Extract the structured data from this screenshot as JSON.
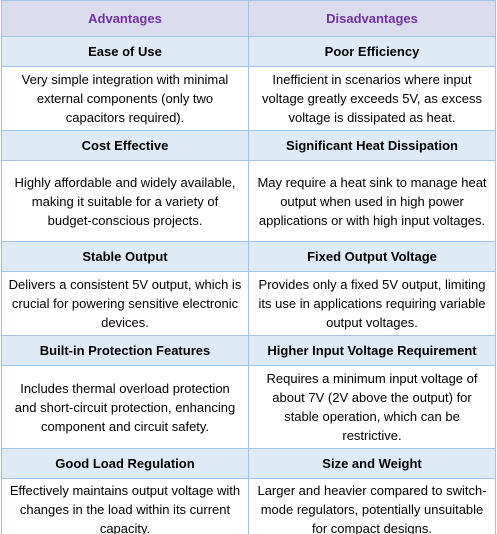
{
  "table": {
    "header": [
      "Advantages",
      "Disadvantages"
    ],
    "rows": [
      [
        {
          "title": "Ease of Use",
          "text": "Very simple integration with minimal external components (only two capacitors required)."
        },
        {
          "title": "Poor Efficiency",
          "text": "Inefficient in scenarios where input voltage greatly exceeds 5V, as excess voltage is dissipated as heat."
        }
      ],
      [
        {
          "title": "Cost Effective",
          "text": "Highly affordable and widely available, making it suitable for a variety of budget-conscious projects."
        },
        {
          "title": "Significant Heat Dissipation",
          "text": "May require a heat sink to manage heat output when used in high power applications or with high input voltages."
        }
      ],
      [
        {
          "title": "Stable Output",
          "text": "Delivers a consistent 5V output, which is crucial for powering sensitive electronic devices."
        },
        {
          "title": "Fixed Output Voltage",
          "text": "Provides only a fixed 5V output, limiting its use in applications requiring variable output voltages."
        }
      ],
      [
        {
          "title": "Built-in Protection Features",
          "text": "Includes thermal overload protection and short-circuit protection, enhancing component and circuit safety."
        },
        {
          "title": "Higher Input Voltage Requirement",
          "text": "Requires a minimum input voltage of about 7V (2V above the output) for stable operation, which can be restrictive."
        }
      ],
      [
        {
          "title": "Good Load Regulation",
          "text": "Effectively maintains output voltage with changes in the load within its current capacity."
        },
        {
          "title": "Size and Weight",
          "text": "Larger and heavier compared to switch-mode regulators, potentially unsuitable for compact designs."
        }
      ]
    ]
  }
}
